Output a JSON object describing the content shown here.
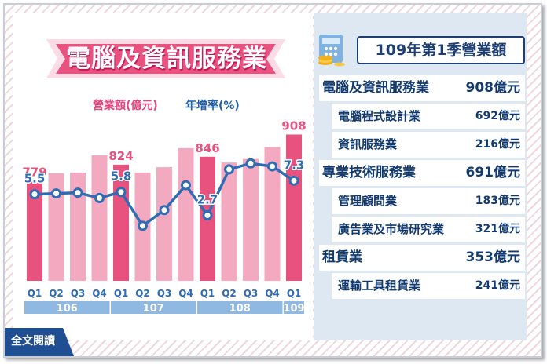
{
  "colors": {
    "bar_highlight": "#e8527f",
    "bar_normal": "#f3aac1",
    "line": "#2f6cb3",
    "year_bar": "#8fb8e3",
    "navy": "#123a6e",
    "pink_title": "#e8527f"
  },
  "chart_title": "電腦及資訊服務業",
  "legend": {
    "revenue": "營業額(億元)",
    "growth": "年增率(%)"
  },
  "chart_data": {
    "type": "bar+line",
    "categories": [
      "Q1",
      "Q2",
      "Q3",
      "Q4",
      "Q1",
      "Q2",
      "Q3",
      "Q4",
      "Q1",
      "Q2",
      "Q3",
      "Q4",
      "Q1"
    ],
    "years": [
      {
        "label": "106",
        "quarters": 4
      },
      {
        "label": "107",
        "quarters": 4
      },
      {
        "label": "108",
        "quarters": 4
      },
      {
        "label": "109",
        "quarters": 1
      }
    ],
    "series": [
      {
        "name": "營業額(億元)",
        "kind": "bar",
        "values": [
          779,
          800,
          802,
          850,
          824,
          802,
          817,
          870,
          846,
          830,
          840,
          873,
          908
        ],
        "labeled_values": {
          "0": "779",
          "4": "824",
          "8": "846",
          "12": "908"
        },
        "highlight": [
          0,
          4,
          8,
          12
        ]
      },
      {
        "name": "年增率(%)",
        "kind": "line",
        "values": [
          5.5,
          5.6,
          5.7,
          5.0,
          5.8,
          1.3,
          3.4,
          6.7,
          2.7,
          8.8,
          9.6,
          9.2,
          7.3
        ],
        "labeled_values": {
          "0": "5.5",
          "4": "5.8",
          "8": "2.7",
          "12": "7.3"
        }
      }
    ],
    "bar_ylim": [
      500,
      920
    ],
    "line_ylim": [
      -6,
      14
    ],
    "grid": false,
    "legend": "top"
  },
  "right_panel": {
    "title": "109年第1季營業額",
    "rows": [
      {
        "label": "電腦及資訊服務業",
        "value": "908億元",
        "level": "main"
      },
      {
        "label": "電腦程式設計業",
        "value": "692億元",
        "level": "sub"
      },
      {
        "label": "資訊服務業",
        "value": "216億元",
        "level": "sub"
      },
      {
        "label": "專業技術服務業",
        "value": "691億元",
        "level": "main"
      },
      {
        "label": "管理顧問業",
        "value": "183億元",
        "level": "sub"
      },
      {
        "label": "廣告業及市場研究業",
        "value": "321億元",
        "level": "sub"
      },
      {
        "label": "租賃業",
        "value": "353億元",
        "level": "main"
      },
      {
        "label": "運輸工具租賃業",
        "value": "241億元",
        "level": "sub"
      }
    ]
  },
  "read_more": "全文閱讀"
}
